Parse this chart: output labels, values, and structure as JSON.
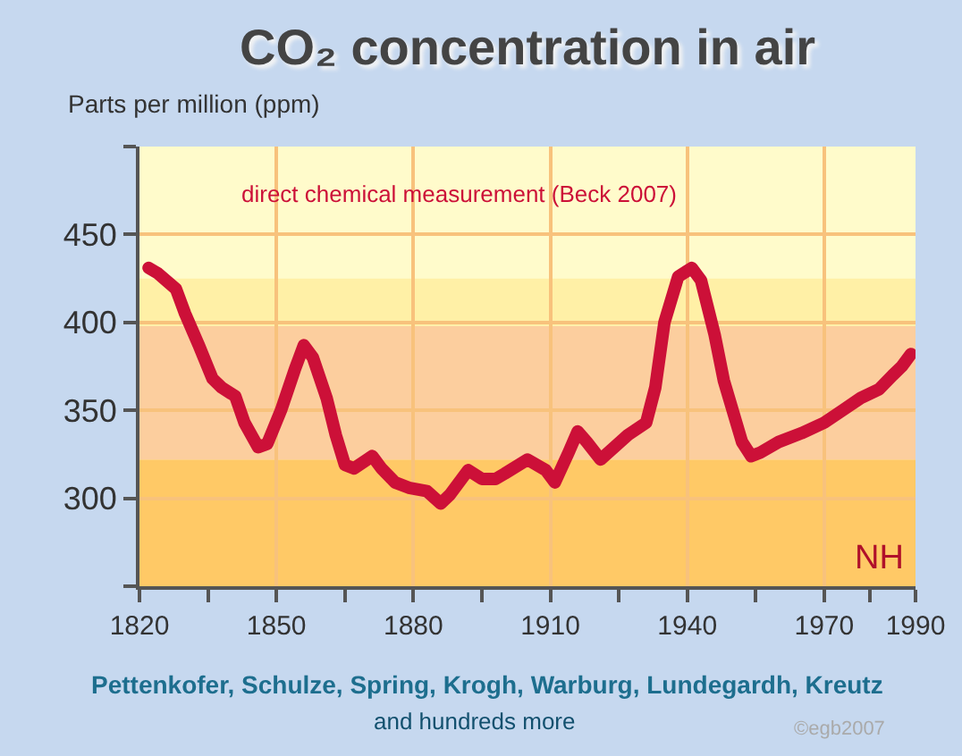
{
  "chart_data": {
    "type": "line",
    "title": "CO₂ concentration in air",
    "ylabel": "Parts per million (ppm)",
    "x": [
      1822,
      1824,
      1828,
      1830,
      1833,
      1836,
      1838,
      1841,
      1843,
      1846,
      1848,
      1851,
      1854,
      1856,
      1858,
      1861,
      1863,
      1865,
      1867,
      1871,
      1873,
      1876,
      1879,
      1883,
      1886,
      1888,
      1892,
      1895,
      1898,
      1900,
      1905,
      1909,
      1911,
      1914,
      1916,
      1918,
      1921,
      1924,
      1927,
      1931,
      1933,
      1935,
      1938,
      1941,
      1943,
      1946,
      1948,
      1952,
      1954,
      1956,
      1960,
      1965,
      1970,
      1974,
      1978,
      1982,
      1985,
      1987,
      1989
    ],
    "series": [
      {
        "name": "direct chemical measurement (Beck 2007)",
        "color": "#cc1038",
        "values": [
          431,
          428,
          419,
          405,
          387,
          368,
          363,
          358,
          343,
          329,
          331,
          350,
          373,
          387,
          380,
          357,
          336,
          319,
          317,
          324,
          317,
          309,
          306,
          304,
          297,
          302,
          316,
          311,
          311,
          314,
          322,
          316,
          309,
          326,
          338,
          332,
          322,
          329,
          336,
          343,
          363,
          400,
          426,
          431,
          424,
          393,
          367,
          332,
          324,
          326,
          332,
          337,
          343,
          350,
          357,
          362,
          370,
          375,
          382
        ]
      }
    ],
    "annotations": [
      "NH",
      "Pettenkofer, Schulze, Spring, Krogh, Warburg, Lundegardh, Kreutz",
      "and hundreds more",
      "©egb2007"
    ],
    "xlim": [
      1820,
      1990
    ],
    "xticks": [
      1820,
      {
        "value": 1835,
        "label": null
      },
      1850,
      {
        "value": 1865,
        "label": null
      },
      1880,
      {
        "value": 1895,
        "label": null
      },
      1910,
      {
        "value": 1925,
        "label": null
      },
      1940,
      {
        "value": 1955,
        "label": null
      },
      1970,
      {
        "value": 1980,
        "label": null
      },
      1990
    ],
    "ylim": [
      250,
      500
    ],
    "yticks": [
      {
        "value": 250,
        "label": null
      },
      300,
      350,
      400,
      450,
      {
        "value": 500,
        "label": null
      }
    ],
    "grid": true,
    "line_style": "solid",
    "bands": [
      {
        "axis": "y",
        "from": 250,
        "to": 322,
        "color": "#ffc966"
      },
      {
        "axis": "y",
        "from": 322,
        "to": 398,
        "color": "#fcce9e"
      },
      {
        "axis": "y",
        "from": 398,
        "to": 425,
        "color": "#fff0a6"
      },
      {
        "axis": "y",
        "from": 425,
        "to": 500,
        "color": "#fffbcb"
      }
    ]
  }
}
